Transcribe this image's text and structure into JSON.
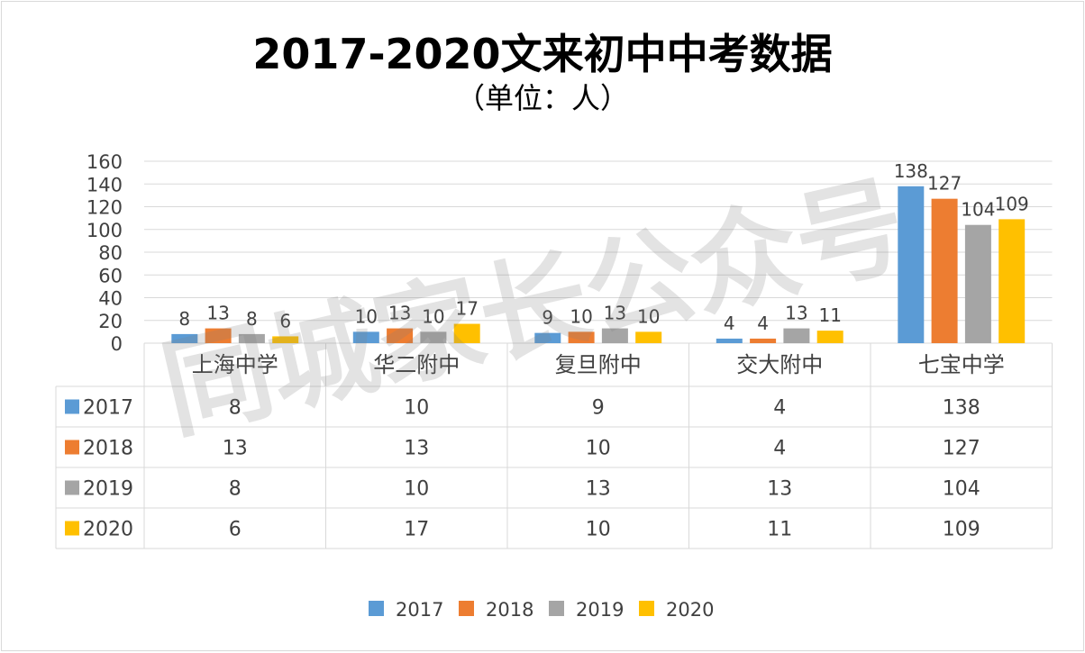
{
  "chart_data": {
    "type": "bar",
    "title": "2017-2020文来初中中考数据",
    "subtitle": "（单位：人）",
    "categories": [
      "上海中学",
      "华二附中",
      "复旦附中",
      "交大附中",
      "七宝中学"
    ],
    "series": [
      {
        "name": "2017",
        "color": "#5b9bd5",
        "values": [
          8,
          10,
          9,
          4,
          138
        ]
      },
      {
        "name": "2018",
        "color": "#ed7d31",
        "values": [
          13,
          13,
          10,
          4,
          127
        ]
      },
      {
        "name": "2019",
        "color": "#a5a5a5",
        "values": [
          8,
          10,
          13,
          13,
          104
        ]
      },
      {
        "name": "2020",
        "color": "#ffc000",
        "values": [
          6,
          17,
          10,
          11,
          109
        ]
      }
    ],
    "ylim": [
      0,
      160
    ],
    "yticks": [
      0,
      20,
      40,
      60,
      80,
      100,
      120,
      140,
      160
    ],
    "grid": true,
    "data_labels": true,
    "data_table": true,
    "legend_position": "bottom",
    "watermark": "同城家长公众号"
  }
}
